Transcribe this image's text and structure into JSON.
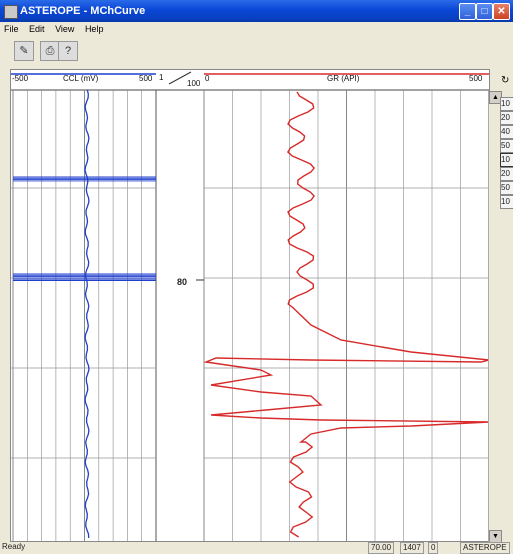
{
  "window": {
    "title": "ASTEROPE - MChCurve"
  },
  "menu": [
    "File",
    "Edit",
    "View",
    "Help"
  ],
  "tracks": {
    "ccl": {
      "left_label": "-500",
      "name": "CCL (mV)",
      "right_label": "500",
      "color": "#1f3fcf"
    },
    "gr": {
      "left_label": "0",
      "name": "GR (API)",
      "right_label": "500",
      "color": "#d72a2a"
    },
    "scale_left": "1",
    "scale_right": "100",
    "depth_label": "80"
  },
  "zoom_levels": [
    "10",
    "20",
    "40",
    "50",
    "10",
    "20",
    "50",
    "10"
  ],
  "status": {
    "left": "Ready",
    "depth": "70.00",
    "value": "1407",
    "zero": "0",
    "app": "ASTEROPE"
  },
  "colors": {
    "title_bar": "#0a47d6",
    "ccl_curve": "#1f3fcf",
    "gr_curve": "#d72a2a"
  }
}
